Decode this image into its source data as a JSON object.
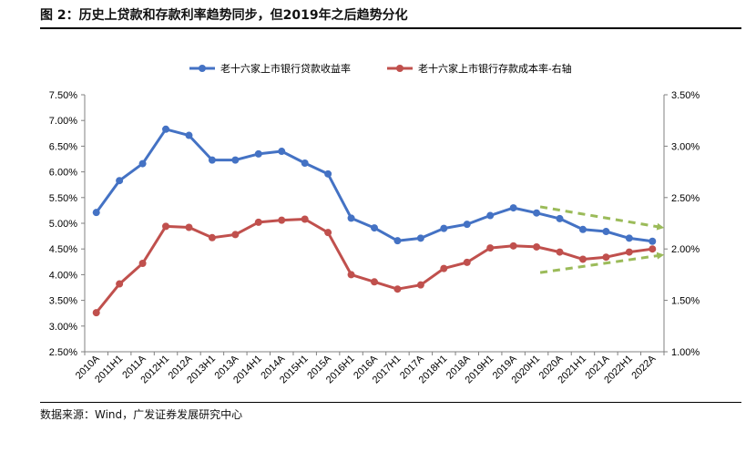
{
  "title": "图 2：历史上贷款和存款利率趋势同步，但2019年之后趋势分化",
  "source": "数据来源：Wind，广发证券发展研究中心",
  "colors": {
    "loan": "#4472C4",
    "deposit": "#C0504D",
    "arrow": "#9BBB59"
  },
  "chart_data": {
    "type": "line",
    "categories": [
      "2010A",
      "2011H1",
      "2011A",
      "2012H1",
      "2012A",
      "2013H1",
      "2013A",
      "2014H1",
      "2014A",
      "2015H1",
      "2015A",
      "2016H1",
      "2016A",
      "2017H1",
      "2017A",
      "2018H1",
      "2018A",
      "2019H1",
      "2019A",
      "2020H1",
      "2020A",
      "2021H1",
      "2021A",
      "2022H1",
      "2022A"
    ],
    "series": [
      {
        "name": "老十六家上市银行贷款收益率",
        "axis": "left",
        "values": [
          5.21,
          5.83,
          6.16,
          6.83,
          6.71,
          6.23,
          6.23,
          6.35,
          6.4,
          6.17,
          5.96,
          5.1,
          4.91,
          4.66,
          4.71,
          4.9,
          4.98,
          5.15,
          5.3,
          5.2,
          5.09,
          4.88,
          4.84,
          4.71,
          4.65
        ]
      },
      {
        "name": "老十六家上市银行存款成本率-右轴",
        "axis": "right",
        "values": [
          1.38,
          1.66,
          1.86,
          2.22,
          2.21,
          2.11,
          2.14,
          2.26,
          2.28,
          2.29,
          2.16,
          1.75,
          1.68,
          1.61,
          1.65,
          1.81,
          1.87,
          2.01,
          2.03,
          2.02,
          1.97,
          1.9,
          1.92,
          1.97,
          2.0
        ]
      }
    ],
    "y_left": {
      "min": 2.5,
      "max": 7.5,
      "step": 0.5,
      "ticks": [
        "2.50%",
        "3.00%",
        "3.50%",
        "4.00%",
        "4.50%",
        "5.00%",
        "5.50%",
        "6.00%",
        "6.50%",
        "7.00%",
        "7.50%"
      ]
    },
    "y_right": {
      "min": 1.0,
      "max": 3.5,
      "step": 0.5,
      "ticks": [
        "1.00%",
        "1.50%",
        "2.00%",
        "2.50%",
        "3.00%",
        "3.50%"
      ]
    },
    "grid": false,
    "legend": "top-center",
    "annotations": [
      {
        "kind": "dashed-arrow",
        "trend": "down",
        "series": "loan",
        "from_category": "2020H1",
        "to_category": "2022A"
      },
      {
        "kind": "dashed-arrow",
        "trend": "up",
        "series": "deposit",
        "from_category": "2020H1",
        "to_category": "2022A"
      }
    ]
  }
}
